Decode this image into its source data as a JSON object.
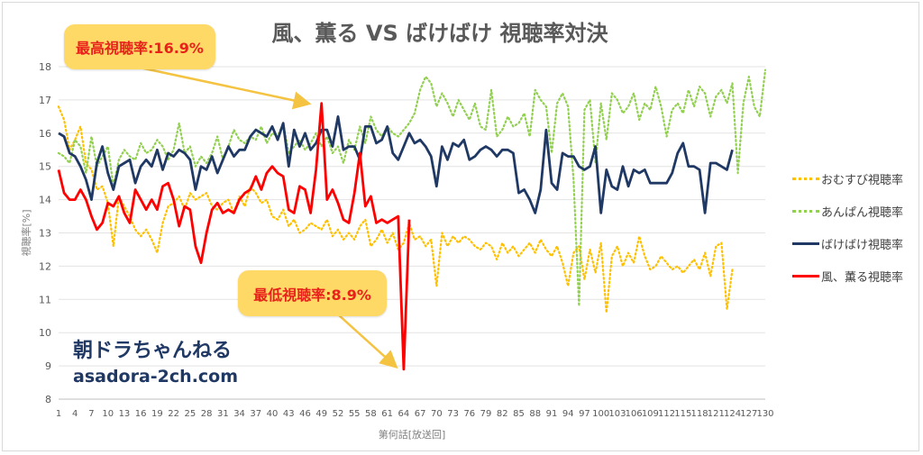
{
  "chart_data": {
    "type": "line",
    "title": "風、薫る VS ばけばけ 視聴率対決",
    "xlabel": "第何話[放送回]",
    "ylabel": "視聴率[%]",
    "ylim": [
      8,
      18
    ],
    "yticks": [
      8,
      9,
      10,
      11,
      12,
      13,
      14,
      15,
      16,
      17,
      18
    ],
    "xlim": [
      1,
      130
    ],
    "xticks": [
      1,
      4,
      7,
      10,
      13,
      16,
      19,
      22,
      25,
      28,
      31,
      34,
      37,
      40,
      43,
      46,
      49,
      52,
      55,
      58,
      61,
      64,
      67,
      70,
      73,
      76,
      79,
      82,
      85,
      88,
      91,
      94,
      97,
      100,
      103,
      106,
      109,
      112,
      115,
      118,
      121,
      124,
      127,
      130
    ],
    "grid": true,
    "legend_position": "right",
    "series": [
      {
        "name": "おむすび視聴率",
        "color": "#ffc000",
        "style": "dotted",
        "x": [
          1,
          2,
          3,
          4,
          5,
          6,
          7,
          8,
          9,
          10,
          11,
          12,
          13,
          14,
          15,
          16,
          17,
          18,
          19,
          20,
          21,
          22,
          23,
          24,
          25,
          26,
          27,
          28,
          29,
          30,
          31,
          32,
          33,
          34,
          35,
          36,
          37,
          38,
          39,
          40,
          41,
          42,
          43,
          44,
          45,
          46,
          47,
          48,
          49,
          50,
          51,
          52,
          53,
          54,
          55,
          56,
          57,
          58,
          59,
          60,
          61,
          62,
          63,
          64,
          65,
          66,
          67,
          68,
          69,
          70,
          71,
          72,
          73,
          74,
          75,
          76,
          77,
          78,
          79,
          80,
          81,
          82,
          83,
          84,
          85,
          86,
          87,
          88,
          89,
          90,
          91,
          92,
          93,
          94,
          95,
          96,
          97,
          98,
          99,
          100,
          101,
          102,
          103,
          104,
          105,
          106,
          107,
          108,
          109,
          110,
          111,
          112,
          113,
          114,
          115,
          116,
          117,
          118,
          119,
          120,
          121,
          122,
          123,
          124
        ],
        "values": [
          16.8,
          16.4,
          15.5,
          15.8,
          16.2,
          15.1,
          14.9,
          14.3,
          14.4,
          13.9,
          12.6,
          14.1,
          13.8,
          13.5,
          13.1,
          12.9,
          13.1,
          12.8,
          12.4,
          13.3,
          13.8,
          13.9,
          14.1,
          13.7,
          14.2,
          14.0,
          14.1,
          14.2,
          13.8,
          13.7,
          13.9,
          14.0,
          13.6,
          14.1,
          13.8,
          14.4,
          14.2,
          13.9,
          14.0,
          13.5,
          13.4,
          13.7,
          13.2,
          13.4,
          13.0,
          13.1,
          13.3,
          13.2,
          13.1,
          13.4,
          12.9,
          13.1,
          12.8,
          13.0,
          12.8,
          13.2,
          13.4,
          12.6,
          12.8,
          13.1,
          12.7,
          13.0,
          12.5,
          12.7,
          13.3,
          12.8,
          12.9,
          12.6,
          12.8,
          11.4,
          13.0,
          12.6,
          12.9,
          12.7,
          12.9,
          12.8,
          12.6,
          12.5,
          12.7,
          12.6,
          12.2,
          12.7,
          12.4,
          12.6,
          12.3,
          12.5,
          12.7,
          12.4,
          12.8,
          12.5,
          12.3,
          12.6,
          12.1,
          11.4,
          12.4,
          12.6,
          11.6,
          12.5,
          11.8,
          12.7,
          10.6,
          12.3,
          12.6,
          12.0,
          12.4,
          12.1,
          12.9,
          12.3,
          11.9,
          12.0,
          12.3,
          12.1,
          11.9,
          12.0,
          11.8,
          12.0,
          12.2,
          11.9,
          12.4,
          11.7,
          12.6,
          12.7,
          10.7,
          11.9
        ]
      },
      {
        "name": "あんぱん視聴率",
        "color": "#92d050",
        "style": "dotted",
        "x": [
          1,
          2,
          3,
          4,
          5,
          6,
          7,
          8,
          9,
          10,
          11,
          12,
          13,
          14,
          15,
          16,
          17,
          18,
          19,
          20,
          21,
          22,
          23,
          24,
          25,
          26,
          27,
          28,
          29,
          30,
          31,
          32,
          33,
          34,
          35,
          36,
          37,
          38,
          39,
          40,
          41,
          42,
          43,
          44,
          45,
          46,
          47,
          48,
          49,
          50,
          51,
          52,
          53,
          54,
          55,
          56,
          57,
          58,
          59,
          60,
          61,
          62,
          63,
          64,
          65,
          66,
          67,
          68,
          69,
          70,
          71,
          72,
          73,
          74,
          75,
          76,
          77,
          78,
          79,
          80,
          81,
          82,
          83,
          84,
          85,
          86,
          87,
          88,
          89,
          90,
          91,
          92,
          93,
          94,
          95,
          96,
          97,
          98,
          99,
          100,
          101,
          102,
          103,
          104,
          105,
          106,
          107,
          108,
          109,
          110,
          111,
          112,
          113,
          114,
          115,
          116,
          117,
          118,
          119,
          120,
          121,
          122,
          123,
          124,
          125,
          126,
          127,
          128,
          129,
          130
        ],
        "values": [
          15.4,
          15.3,
          15.1,
          15.8,
          15.6,
          14.8,
          15.9,
          15.0,
          15.3,
          15.6,
          14.4,
          15.2,
          15.5,
          15.3,
          15.2,
          15.7,
          15.4,
          15.5,
          15.8,
          15.6,
          15.2,
          15.5,
          16.3,
          15.4,
          15.6,
          15.0,
          15.3,
          15.1,
          15.4,
          15.9,
          15.2,
          15.6,
          16.1,
          15.8,
          15.7,
          15.9,
          15.8,
          16.2,
          15.7,
          16.0,
          15.9,
          16.3,
          15.4,
          15.6,
          15.8,
          15.5,
          15.7,
          16.0,
          15.6,
          15.9,
          15.4,
          15.6,
          15.1,
          15.8,
          15.5,
          16.2,
          15.7,
          16.5,
          16.1,
          15.9,
          16.2,
          16.0,
          15.9,
          16.1,
          16.3,
          16.6,
          17.3,
          17.7,
          17.5,
          16.8,
          17.2,
          16.9,
          16.5,
          17.0,
          16.7,
          16.4,
          16.9,
          16.2,
          16.1,
          17.3,
          15.9,
          16.1,
          16.5,
          16.2,
          16.3,
          16.6,
          15.9,
          17.3,
          17.0,
          16.8,
          15.4,
          16.9,
          17.2,
          16.8,
          14.6,
          10.8,
          16.7,
          17.0,
          15.1,
          16.9,
          15.8,
          17.2,
          17.0,
          16.6,
          16.8,
          17.2,
          16.4,
          16.9,
          16.7,
          17.4,
          16.8,
          15.9,
          16.7,
          16.9,
          16.6,
          17.3,
          16.8,
          17.4,
          17.2,
          16.5,
          17.1,
          17.3,
          16.9,
          17.5,
          14.8,
          16.9,
          17.7,
          16.8,
          16.5,
          17.9
        ]
      },
      {
        "name": "ばけばけ視聴率",
        "color": "#1f3864",
        "style": "solid",
        "x": [
          1,
          2,
          3,
          4,
          5,
          6,
          7,
          8,
          9,
          10,
          11,
          12,
          13,
          14,
          15,
          16,
          17,
          18,
          19,
          20,
          21,
          22,
          23,
          24,
          25,
          26,
          27,
          28,
          29,
          30,
          31,
          32,
          33,
          34,
          35,
          36,
          37,
          38,
          39,
          40,
          41,
          42,
          43,
          44,
          45,
          46,
          47,
          48,
          49,
          50,
          51,
          52,
          53,
          54,
          55,
          56,
          57,
          58,
          59,
          60,
          61,
          62,
          63,
          64,
          65,
          66,
          67,
          68,
          69,
          70,
          71,
          72,
          73,
          74,
          75,
          76,
          77,
          78,
          79,
          80,
          81,
          82,
          83,
          84,
          85,
          86,
          87,
          88,
          89,
          90,
          91,
          92,
          93,
          94,
          95,
          96,
          97,
          98,
          99,
          100,
          101,
          102,
          103,
          104,
          105,
          106,
          107,
          108,
          109,
          110,
          111,
          112,
          113,
          114,
          115,
          116,
          117,
          118,
          119,
          120,
          121,
          122,
          123,
          124
        ],
        "values": [
          16.0,
          15.9,
          15.4,
          15.3,
          15.0,
          14.6,
          14.0,
          15.1,
          15.6,
          14.8,
          14.3,
          15.0,
          15.1,
          15.2,
          14.5,
          15.0,
          15.2,
          15.0,
          15.5,
          14.9,
          15.4,
          15.3,
          15.5,
          15.4,
          15.2,
          14.3,
          15.0,
          14.9,
          15.3,
          14.8,
          15.2,
          15.6,
          15.3,
          15.5,
          15.5,
          15.9,
          16.1,
          16.0,
          15.9,
          16.2,
          15.8,
          16.3,
          15.0,
          16.1,
          15.6,
          16.0,
          15.5,
          15.7,
          16.1,
          16.1,
          15.6,
          16.5,
          15.5,
          15.6,
          15.6,
          15.2,
          16.2,
          16.2,
          15.7,
          15.8,
          16.2,
          15.4,
          15.2,
          15.6,
          16.0,
          15.7,
          15.8,
          15.6,
          15.3,
          14.4,
          15.6,
          15.2,
          15.7,
          15.6,
          15.8,
          15.2,
          15.3,
          15.5,
          15.6,
          15.5,
          15.3,
          15.5,
          15.5,
          15.4,
          14.2,
          14.3,
          14.0,
          13.6,
          14.3,
          16.1,
          14.5,
          14.3,
          15.4,
          15.3,
          15.3,
          15.0,
          14.9,
          15.0,
          15.6,
          13.6,
          14.9,
          14.4,
          14.3,
          15.0,
          14.4,
          14.9,
          14.8,
          14.9,
          14.5,
          14.5,
          14.5,
          14.5,
          14.8,
          15.4,
          15.7,
          15.0,
          15.0,
          14.9,
          13.6,
          15.1,
          15.1,
          15.0,
          14.9,
          15.5
        ]
      },
      {
        "name": "風、薫る視聴率",
        "color": "#ff0000",
        "style": "solid",
        "x": [
          1,
          2,
          3,
          4,
          5,
          6,
          7,
          8,
          9,
          10,
          11,
          12,
          13,
          14,
          15,
          16,
          17,
          18,
          19,
          20,
          21,
          22,
          23,
          24,
          25,
          26,
          27,
          28,
          29,
          30,
          31,
          32,
          33,
          34,
          35,
          36,
          37,
          38,
          39,
          40,
          41,
          42,
          43,
          44,
          45,
          46,
          47,
          48,
          49,
          50,
          51,
          52,
          53,
          54,
          55,
          56,
          57,
          58,
          59,
          60,
          61,
          62,
          63,
          64,
          65
        ],
        "values": [
          14.9,
          14.2,
          14.0,
          14.0,
          14.3,
          14.0,
          13.5,
          13.1,
          13.3,
          13.9,
          13.8,
          14.1,
          13.6,
          13.3,
          14.3,
          14.0,
          13.7,
          14.0,
          13.7,
          14.4,
          14.5,
          14.0,
          13.2,
          13.8,
          13.7,
          12.6,
          12.1,
          13.0,
          13.7,
          13.9,
          13.6,
          13.7,
          13.6,
          14.0,
          14.2,
          14.3,
          14.7,
          14.3,
          14.8,
          15.0,
          14.8,
          14.7,
          13.7,
          13.6,
          14.4,
          14.3,
          13.6,
          14.9,
          16.9,
          14.0,
          14.3,
          13.9,
          13.4,
          13.3,
          14.2,
          15.4,
          13.8,
          14.1,
          13.3,
          13.4,
          13.3,
          13.4,
          13.5,
          8.9,
          13.4
        ]
      }
    ],
    "annotations": [
      {
        "text": "最高視聴率:16.9%",
        "x": 48,
        "y": 16.9
      },
      {
        "text": "最低視聴率:8.9%",
        "x": 64,
        "y": 8.9
      }
    ]
  },
  "watermark": {
    "name": "朝ドラちゃんねる",
    "url": "asadora-2ch.com"
  },
  "annotation_style": {
    "fill": "#ffd966",
    "text_color": "#e8221a",
    "arrow_color": "#f5c342"
  }
}
